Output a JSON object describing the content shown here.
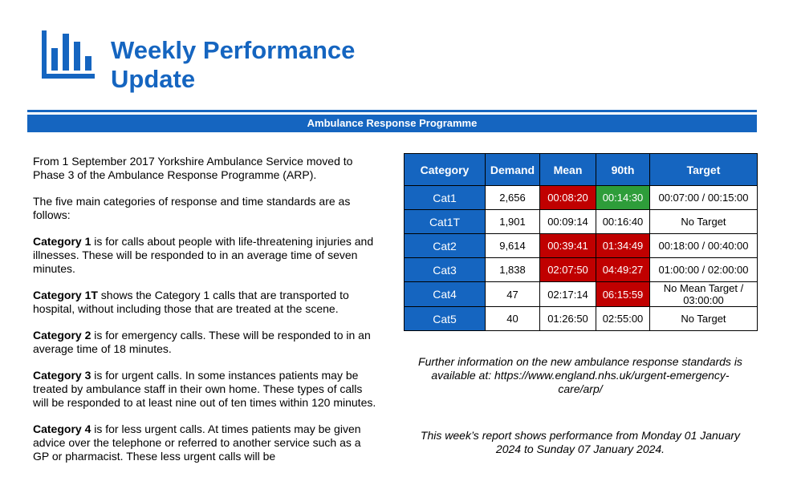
{
  "header": {
    "title_line1": "Weekly Performance",
    "title_line2": "Update",
    "logo_icon": "bar-chart-icon",
    "accent_color": "#1565c0"
  },
  "banner": {
    "text": "Ambulance Response Programme"
  },
  "intro": {
    "p1": "From 1 September 2017 Yorkshire Ambulance Service moved to Phase 3 of the Ambulance Response Programme (ARP).",
    "p2": "The five main categories of response and time standards are as follows:",
    "categories": [
      {
        "bold": "Category 1",
        "text": " is for calls about people with life-threatening injuries and illnesses. These will be responded to in an average time of seven minutes."
      },
      {
        "bold": "Category 1T",
        "text": " shows the Category 1 calls that are transported to hospital, without including those that are treated at the scene."
      },
      {
        "bold": "Category 2",
        "text": " is for emergency calls. These will be responded to in an average time of 18 minutes."
      },
      {
        "bold": "Category 3",
        "text": " is for urgent calls. In some instances patients may be treated by ambulance staff in their own home. These types of calls will be responded to at least nine out of ten times within 120 minutes."
      },
      {
        "bold": "Category 4",
        "text": " is for less urgent calls. At times patients may be given advice over the telephone or referred to another service such as a GP or pharmacist. These less urgent calls will be"
      }
    ]
  },
  "table": {
    "headers": [
      "Category",
      "Demand",
      "Mean",
      "90th",
      "Target"
    ],
    "rows": [
      {
        "category": "Cat1",
        "demand": "2,656",
        "mean": "00:08:20",
        "p90": "00:14:30",
        "target_line1": "00:07:00 / 00:15:00",
        "target_line2": "",
        "mean_status": "red",
        "p90_status": "green"
      },
      {
        "category": "Cat1T",
        "demand": "1,901",
        "mean": "00:09:14",
        "p90": "00:16:40",
        "target_line1": "No Target",
        "target_line2": "",
        "mean_status": "none",
        "p90_status": "none"
      },
      {
        "category": "Cat2",
        "demand": "9,614",
        "mean": "00:39:41",
        "p90": "01:34:49",
        "target_line1": "00:18:00 / 00:40:00",
        "target_line2": "",
        "mean_status": "red",
        "p90_status": "red"
      },
      {
        "category": "Cat3",
        "demand": "1,838",
        "mean": "02:07:50",
        "p90": "04:49:27",
        "target_line1": "01:00:00 / 02:00:00",
        "target_line2": "",
        "mean_status": "red",
        "p90_status": "red"
      },
      {
        "category": "Cat4",
        "demand": "47",
        "mean": "02:17:14",
        "p90": "06:15:59",
        "target_line1": "No Mean Target /",
        "target_line2": "03:00:00",
        "mean_status": "none",
        "p90_status": "red"
      },
      {
        "category": "Cat5",
        "demand": "40",
        "mean": "01:26:50",
        "p90": "02:55:00",
        "target_line1": "No Target",
        "target_line2": "",
        "mean_status": "none",
        "p90_status": "none"
      }
    ],
    "status_colors": {
      "red": "#c00000",
      "green": "#2e9d3a",
      "header": "#1565c0"
    }
  },
  "info": {
    "further_line1": "Further information on the new ambulance response standards is",
    "further_line2": "available at: https://www.england.nhs.uk/urgent-emergency-",
    "further_line3": "care/arp/",
    "report_line1": "This week’s report shows performance from Monday 01 January",
    "report_line2": "2024 to Sunday 07 January 2024."
  }
}
